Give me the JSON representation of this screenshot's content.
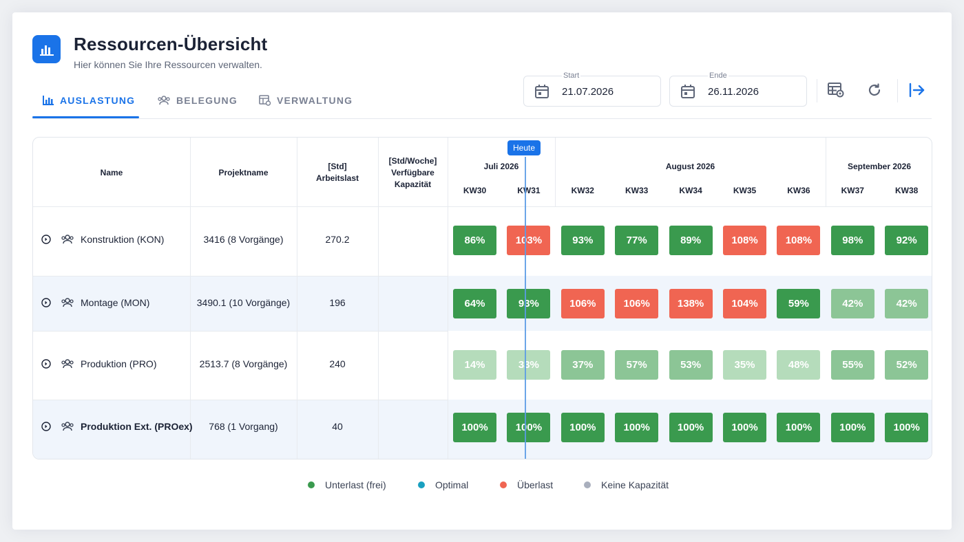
{
  "header": {
    "title": "Ressourcen-Übersicht",
    "subtitle": "Hier können Sie Ihre Ressourcen verwalten.",
    "logo_icon": "bar-chart-icon"
  },
  "tabs": [
    {
      "label": "AUSLASTUNG",
      "icon": "bar-chart-icon",
      "active": true
    },
    {
      "label": "BELEGUNG",
      "icon": "people-icon",
      "active": false
    },
    {
      "label": "VERWALTUNG",
      "icon": "table-settings-icon",
      "active": false
    }
  ],
  "date_range": {
    "start": {
      "label": "Start",
      "value": "21.07.2026"
    },
    "end": {
      "label": "Ende",
      "value": "26.11.2026"
    }
  },
  "toolbar_icons": [
    "table-settings-icon",
    "refresh-icon",
    "logout-icon"
  ],
  "table": {
    "columns": {
      "name": "Name",
      "project": "Projektname",
      "workload": "[Std]\nArbeitslast",
      "capacity": "[Std/Woche]\nVerfügbare\nKapazität"
    },
    "months": [
      {
        "label": "Juli 2026"
      },
      {
        "label": "August 2026"
      },
      {
        "label": "September 2026"
      }
    ],
    "weeks": [
      "KW30",
      "KW31",
      "KW32",
      "KW33",
      "KW34",
      "KW35",
      "KW36",
      "KW37",
      "KW38"
    ],
    "today_label": "Heute",
    "rows": [
      {
        "name": "Konstruktion (KON)",
        "bold": false,
        "project": "3416 (8 Vorgänge)",
        "workload": "270.2",
        "capacity": "",
        "cells": [
          {
            "v": "86%",
            "s": "under"
          },
          {
            "v": "103%",
            "s": "over"
          },
          {
            "v": "93%",
            "s": "under"
          },
          {
            "v": "77%",
            "s": "under"
          },
          {
            "v": "89%",
            "s": "under"
          },
          {
            "v": "108%",
            "s": "over"
          },
          {
            "v": "108%",
            "s": "over"
          },
          {
            "v": "98%",
            "s": "under"
          },
          {
            "v": "92%",
            "s": "under"
          }
        ]
      },
      {
        "name": "Montage (MON)",
        "bold": false,
        "project": "3490.1 (10 Vorgänge)",
        "workload": "196",
        "capacity": "",
        "cells": [
          {
            "v": "64%",
            "s": "under"
          },
          {
            "v": "93%",
            "s": "under"
          },
          {
            "v": "106%",
            "s": "over"
          },
          {
            "v": "106%",
            "s": "over"
          },
          {
            "v": "138%",
            "s": "over"
          },
          {
            "v": "104%",
            "s": "over"
          },
          {
            "v": "59%",
            "s": "under"
          },
          {
            "v": "42%",
            "s": "light"
          },
          {
            "v": "42%",
            "s": "light"
          }
        ]
      },
      {
        "name": "Produktion (PRO)",
        "bold": false,
        "project": "2513.7 (8 Vorgänge)",
        "workload": "240",
        "capacity": "",
        "cells": [
          {
            "v": "14%",
            "s": "pale"
          },
          {
            "v": "33%",
            "s": "pale"
          },
          {
            "v": "37%",
            "s": "light"
          },
          {
            "v": "57%",
            "s": "light"
          },
          {
            "v": "53%",
            "s": "light"
          },
          {
            "v": "35%",
            "s": "pale"
          },
          {
            "v": "48%",
            "s": "pale"
          },
          {
            "v": "55%",
            "s": "light"
          },
          {
            "v": "52%",
            "s": "light"
          }
        ]
      },
      {
        "name": "Produktion Ext. (PROex)",
        "bold": true,
        "project": "768 (1 Vorgang)",
        "workload": "40",
        "capacity": "",
        "cells": [
          {
            "v": "100%",
            "s": "under"
          },
          {
            "v": "100%",
            "s": "under"
          },
          {
            "v": "100%",
            "s": "under"
          },
          {
            "v": "100%",
            "s": "under"
          },
          {
            "v": "100%",
            "s": "under"
          },
          {
            "v": "100%",
            "s": "under"
          },
          {
            "v": "100%",
            "s": "under"
          },
          {
            "v": "100%",
            "s": "under"
          },
          {
            "v": "100%",
            "s": "under"
          }
        ]
      }
    ]
  },
  "status_colors": {
    "under": "#3a9a4e",
    "light": "#8cc596",
    "pale": "#b5dcbb",
    "over": "#f06552",
    "optimal": "#1aa0c0",
    "none": "#a9afbd"
  },
  "legend": [
    {
      "label": "Unterlast (frei)",
      "color": "#3a9a4e"
    },
    {
      "label": "Optimal",
      "color": "#1aa0c0"
    },
    {
      "label": "Überlast",
      "color": "#f06552"
    },
    {
      "label": "Keine Kapazität",
      "color": "#a9afbd"
    }
  ]
}
